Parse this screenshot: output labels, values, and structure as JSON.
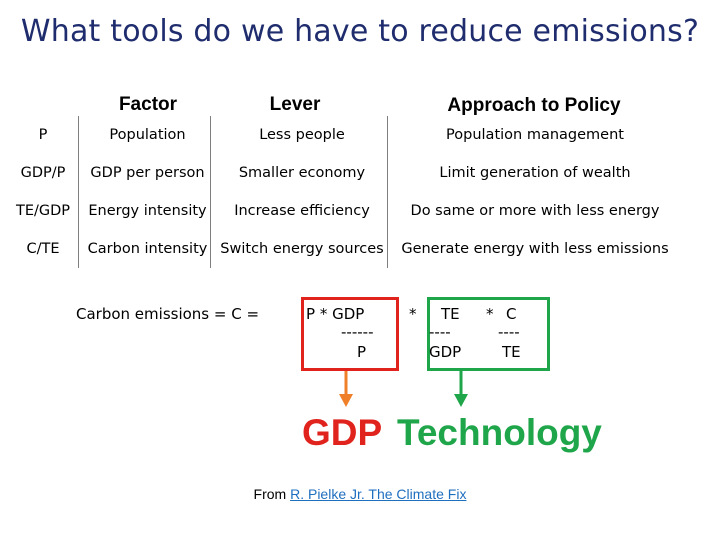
{
  "title": "What tools do we have to reduce emissions?",
  "headers": [
    "Factor",
    "Lever",
    "Approach to Policy"
  ],
  "rows": [
    {
      "symbol": "P",
      "factor": "Population",
      "lever": "Less people",
      "policy": "Population management"
    },
    {
      "symbol": "GDP/P",
      "factor": "GDP per person",
      "lever": "Smaller economy",
      "policy": "Limit generation of wealth"
    },
    {
      "symbol": "TE/GDP",
      "factor": "Energy intensity",
      "lever": "Increase efficiency",
      "policy": "Do same or more with less energy"
    },
    {
      "symbol": "C/TE",
      "factor": "Carbon intensity",
      "lever": "Switch energy sources",
      "policy": "Generate energy with less emissions"
    }
  ],
  "equation": {
    "lhs": "Carbon emissions =  C  =",
    "term1_top": "P  *  GDP",
    "term1_bar": "------",
    "term1_bottom": "P",
    "mult": "*",
    "term2_top": "TE",
    "term2_bar": "----",
    "term2_bottom": "GDP",
    "mult2": "*",
    "term3_top": "C",
    "term3_bar": "----",
    "term3_bottom": "TE"
  },
  "labels": {
    "gdp": "GDP",
    "technology": "Technology"
  },
  "colors": {
    "title": "#1f2d6e",
    "red": "#e0231c",
    "green": "#1fa64a",
    "link": "#1f6fbf"
  },
  "source": {
    "prefix": "From ",
    "link": "R. Pielke Jr. The Climate Fix"
  }
}
